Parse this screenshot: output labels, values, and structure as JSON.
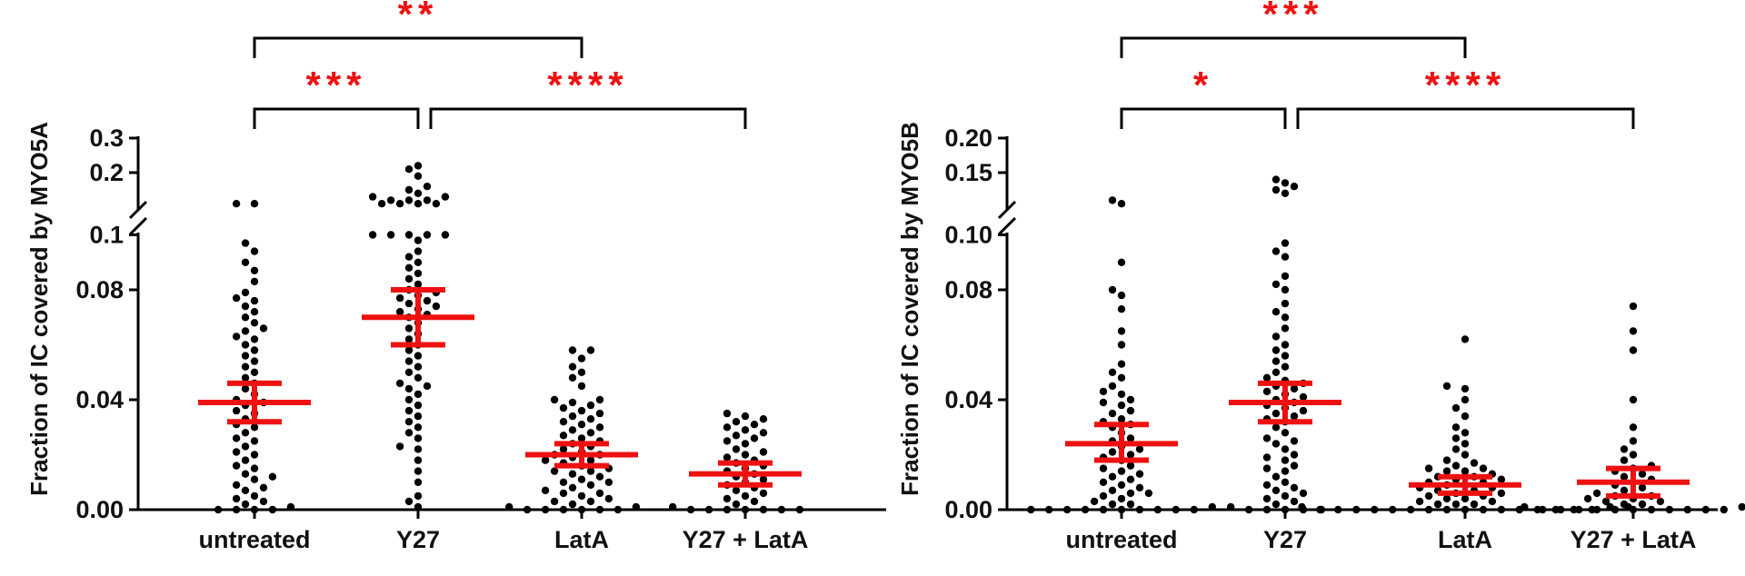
{
  "colors": {
    "points": "#000000",
    "error_bars": "#ee1111",
    "significance": "#ee1111",
    "axes": "#000000"
  },
  "chart_data": [
    {
      "type": "scatter",
      "variant": "beeswarm-dot-plot-with-mean-and-sem",
      "ylabel": "Fraction of IC covered by MYO5A",
      "categories": [
        "untreated",
        "Y27",
        "LatA",
        "Y27 + LatA"
      ],
      "y_axis_broken": true,
      "y_lower": {
        "range": [
          0,
          0.1
        ],
        "ticks": [
          "0.00",
          "0.04",
          "0.08"
        ],
        "tick_values": [
          0,
          0.04,
          0.08
        ]
      },
      "y_upper": {
        "range": [
          0.1,
          0.3
        ],
        "ticks": [
          "0.1",
          "0.2",
          "0.3"
        ],
        "tick_values": [
          0.1,
          0.2,
          0.3
        ]
      },
      "means": [
        0.039,
        0.07,
        0.02,
        0.013
      ],
      "sem_low": [
        0.032,
        0.06,
        0.016,
        0.009
      ],
      "sem_high": [
        0.046,
        0.08,
        0.024,
        0.017
      ],
      "points": [
        [
          0.11,
          0.11,
          0.097,
          0.094,
          0.09,
          0.087,
          0.083,
          0.079,
          0.077,
          0.076,
          0.074,
          0.072,
          0.07,
          0.068,
          0.066,
          0.065,
          0.063,
          0.062,
          0.06,
          0.058,
          0.056,
          0.054,
          0.052,
          0.05,
          0.048,
          0.046,
          0.044,
          0.042,
          0.04,
          0.039,
          0.038,
          0.036,
          0.035,
          0.033,
          0.031,
          0.03,
          0.028,
          0.026,
          0.025,
          0.023,
          0.021,
          0.02,
          0.018,
          0.016,
          0.015,
          0.013,
          0.012,
          0.011,
          0.009,
          0.008,
          0.007,
          0.005,
          0.004,
          0.003,
          0.002,
          0.001,
          0,
          0,
          0,
          0
        ],
        [
          0.22,
          0.21,
          0.19,
          0.16,
          0.15,
          0.14,
          0.13,
          0.13,
          0.12,
          0.12,
          0.12,
          0.11,
          0.11,
          0.11,
          0.11,
          0.1,
          0.1,
          0.1,
          0.1,
          0.1,
          0.098,
          0.094,
          0.092,
          0.09,
          0.088,
          0.086,
          0.084,
          0.082,
          0.08,
          0.079,
          0.078,
          0.077,
          0.076,
          0.075,
          0.074,
          0.073,
          0.072,
          0.071,
          0.07,
          0.068,
          0.066,
          0.064,
          0.062,
          0.06,
          0.058,
          0.056,
          0.054,
          0.052,
          0.05,
          0.048,
          0.046,
          0.045,
          0.044,
          0.042,
          0.04,
          0.038,
          0.036,
          0.034,
          0.032,
          0.03,
          0.028,
          0.026,
          0.023,
          0.022,
          0.018,
          0.014,
          0.01,
          0.005,
          0.003,
          0.001
        ],
        [
          0.058,
          0.058,
          0.055,
          0.052,
          0.05,
          0.048,
          0.045,
          0.04,
          0.04,
          0.039,
          0.038,
          0.037,
          0.036,
          0.035,
          0.034,
          0.033,
          0.032,
          0.031,
          0.03,
          0.029,
          0.028,
          0.027,
          0.026,
          0.025,
          0.024,
          0.023,
          0.022,
          0.021,
          0.02,
          0.02,
          0.019,
          0.018,
          0.018,
          0.017,
          0.016,
          0.015,
          0.014,
          0.014,
          0.013,
          0.012,
          0.011,
          0.01,
          0.01,
          0.009,
          0.008,
          0.007,
          0.006,
          0.006,
          0.005,
          0.004,
          0.003,
          0.003,
          0.002,
          0.001,
          0.001,
          0,
          0,
          0,
          0,
          0,
          0
        ],
        [
          0.035,
          0.034,
          0.033,
          0.032,
          0.031,
          0.03,
          0.029,
          0.028,
          0.027,
          0.026,
          0.025,
          0.024,
          0.022,
          0.021,
          0.02,
          0.019,
          0.018,
          0.017,
          0.016,
          0.015,
          0.014,
          0.013,
          0.012,
          0.011,
          0.01,
          0.009,
          0.008,
          0.007,
          0.006,
          0.005,
          0.004,
          0.003,
          0.002,
          0.001,
          0,
          0,
          0,
          0,
          0,
          0,
          0
        ]
      ],
      "comparisons": [
        {
          "from": 0,
          "to": 2,
          "label": "**"
        },
        {
          "from": 0,
          "to": 1,
          "label": "***"
        },
        {
          "from": 1,
          "to": 3,
          "label": "****"
        }
      ]
    },
    {
      "type": "scatter",
      "variant": "beeswarm-dot-plot-with-mean-and-sem",
      "ylabel": "Fraction of IC covered by MYO5B",
      "categories": [
        "untreated",
        "Y27",
        "LatA",
        "Y27 + LatA"
      ],
      "y_axis_broken": true,
      "y_lower": {
        "range": [
          0,
          0.1
        ],
        "ticks": [
          "0.00",
          "0.04",
          "0.08"
        ],
        "tick_values": [
          0,
          0.04,
          0.08
        ]
      },
      "y_upper": {
        "range": [
          0.1,
          0.2
        ],
        "ticks": [
          "0.10",
          "0.15",
          "0.20"
        ],
        "tick_values": [
          0.1,
          0.15,
          0.2
        ]
      },
      "means": [
        0.024,
        0.039,
        0.009,
        0.01
      ],
      "sem_low": [
        0.018,
        0.032,
        0.006,
        0.005
      ],
      "sem_high": [
        0.031,
        0.046,
        0.012,
        0.015
      ],
      "points": [
        [
          0.11,
          0.105,
          0.09,
          0.08,
          0.078,
          0.073,
          0.065,
          0.06,
          0.053,
          0.05,
          0.048,
          0.045,
          0.043,
          0.042,
          0.04,
          0.039,
          0.038,
          0.036,
          0.035,
          0.033,
          0.032,
          0.031,
          0.03,
          0.028,
          0.026,
          0.025,
          0.023,
          0.022,
          0.021,
          0.02,
          0.019,
          0.018,
          0.016,
          0.015,
          0.014,
          0.013,
          0.012,
          0.011,
          0.01,
          0.009,
          0.008,
          0.007,
          0.006,
          0.006,
          0.005,
          0.004,
          0.003,
          0.002,
          0.002,
          0.001,
          0,
          0,
          0,
          0,
          0,
          0,
          0,
          0,
          0,
          0
        ],
        [
          0.14,
          0.135,
          0.13,
          0.125,
          0.12,
          0.097,
          0.094,
          0.092,
          0.085,
          0.082,
          0.08,
          0.075,
          0.072,
          0.07,
          0.066,
          0.063,
          0.06,
          0.058,
          0.056,
          0.054,
          0.052,
          0.05,
          0.048,
          0.047,
          0.046,
          0.045,
          0.044,
          0.043,
          0.042,
          0.041,
          0.04,
          0.039,
          0.038,
          0.037,
          0.036,
          0.035,
          0.034,
          0.033,
          0.032,
          0.03,
          0.028,
          0.026,
          0.025,
          0.024,
          0.022,
          0.02,
          0.019,
          0.018,
          0.016,
          0.015,
          0.014,
          0.012,
          0.01,
          0.009,
          0.008,
          0.007,
          0.006,
          0.005,
          0.004,
          0.003,
          0.002,
          0.001,
          0,
          0,
          0,
          0,
          0
        ],
        [
          0.062,
          0.045,
          0.044,
          0.04,
          0.037,
          0.034,
          0.03,
          0.028,
          0.026,
          0.024,
          0.022,
          0.02,
          0.018,
          0.017,
          0.016,
          0.015,
          0.015,
          0.014,
          0.014,
          0.013,
          0.012,
          0.012,
          0.011,
          0.011,
          0.01,
          0.01,
          0.009,
          0.009,
          0.008,
          0.008,
          0.007,
          0.007,
          0.006,
          0.006,
          0.005,
          0.005,
          0.004,
          0.004,
          0.003,
          0.003,
          0.002,
          0.002,
          0.002,
          0.001,
          0.001,
          0.001,
          0,
          0,
          0,
          0,
          0,
          0,
          0,
          0,
          0,
          0,
          0,
          0,
          0,
          0,
          0,
          0
        ],
        [
          0.074,
          0.065,
          0.058,
          0.04,
          0.03,
          0.025,
          0.022,
          0.02,
          0.018,
          0.016,
          0.015,
          0.014,
          0.013,
          0.012,
          0.011,
          0.01,
          0.009,
          0.008,
          0.007,
          0.006,
          0.005,
          0.005,
          0.004,
          0.004,
          0.003,
          0.003,
          0.002,
          0.002,
          0.001,
          0.001,
          0,
          0,
          0,
          0,
          0,
          0,
          0,
          0,
          0,
          0,
          0
        ]
      ],
      "comparisons": [
        {
          "from": 0,
          "to": 2,
          "label": "***"
        },
        {
          "from": 0,
          "to": 1,
          "label": "*"
        },
        {
          "from": 1,
          "to": 3,
          "label": "****"
        }
      ]
    }
  ]
}
